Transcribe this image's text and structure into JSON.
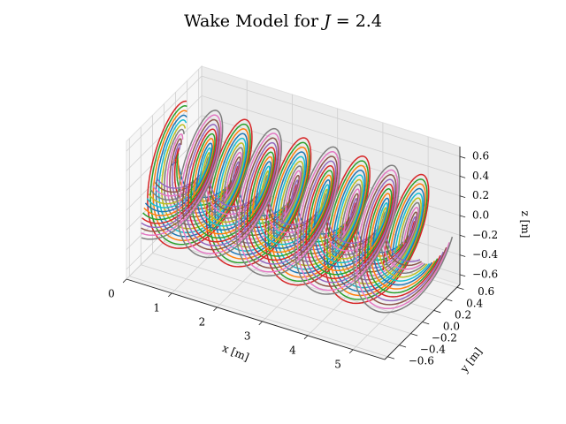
{
  "chart_data": {
    "type": "line",
    "projection": "3d",
    "title": "Wake Model for J = 2.4",
    "title_prefix": "Wake Model for ",
    "title_var": "J",
    "title_value": " = 2.4",
    "xlabel": "x [m]",
    "ylabel": "y [m]",
    "zlabel": "z [m]",
    "xlim": [
      0,
      5.7
    ],
    "ylim": [
      -0.65,
      0.65
    ],
    "zlim": [
      -0.7,
      0.7
    ],
    "x_ticks": [
      "0",
      "1",
      "2",
      "3",
      "4",
      "5"
    ],
    "y_ticks": [
      "−0.6",
      "−0.4",
      "−0.2",
      "0.0",
      "0.2",
      "0.4",
      "0.6"
    ],
    "z_ticks": [
      "−0.6",
      "−0.4",
      "−0.2",
      "0.0",
      "0.2",
      "0.4",
      "0.6"
    ],
    "grid": true,
    "helix": {
      "advance_ratio": 2.4,
      "radius_max": 0.66,
      "radius_min": 0.12,
      "x_start": 0.0,
      "x_end": 5.6,
      "blades": 2,
      "pitch": 1.3,
      "filament_count": 14
    },
    "series_colors": [
      "#1f77b4",
      "#ff7f0e",
      "#2ca02c",
      "#d62728",
      "#9467bd",
      "#8c564b",
      "#e377c2",
      "#7f7f7f",
      "#bcbd22",
      "#17becf"
    ]
  }
}
